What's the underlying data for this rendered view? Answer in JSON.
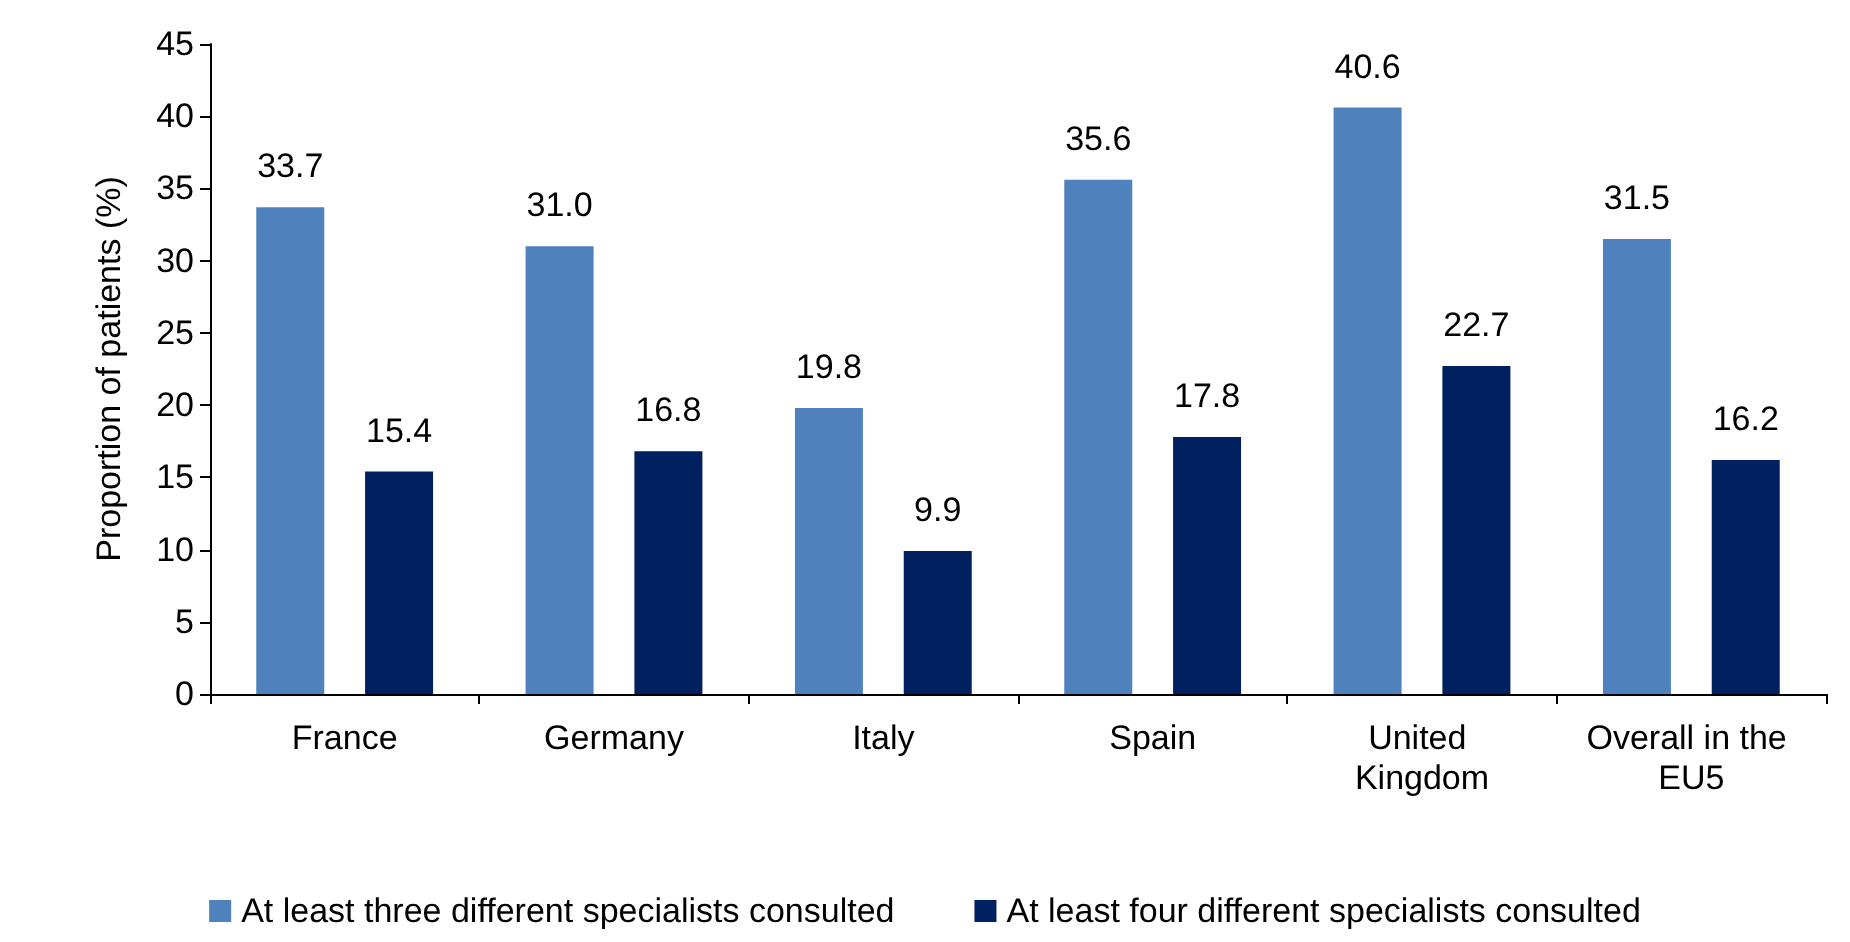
{
  "chart_data": {
    "type": "bar",
    "ylabel": "Proportion of patients (%)",
    "categories": [
      "France",
      "Germany",
      "Italy",
      "Spain",
      "United Kingdom",
      "Overall in the EU5"
    ],
    "series": [
      {
        "name": "At least three different specialists consulted",
        "color": "#4f81bd",
        "values": [
          33.7,
          31.0,
          19.8,
          35.6,
          40.6,
          31.5
        ],
        "value_labels": [
          "33.7",
          "31.0",
          "19.8",
          "35.6",
          "40.6",
          "31.5"
        ]
      },
      {
        "name": "At least four different specialists consulted",
        "color": "#002060",
        "values": [
          15.4,
          16.8,
          9.9,
          17.8,
          22.7,
          16.2
        ],
        "value_labels": [
          "15.4",
          "16.8",
          "9.9",
          "17.8",
          "22.7",
          "16.2"
        ]
      }
    ],
    "ylim": [
      0,
      45
    ],
    "yticks": [
      0,
      5,
      10,
      15,
      20,
      25,
      30,
      35,
      40,
      45
    ],
    "grid": false,
    "legend": "bottom"
  }
}
